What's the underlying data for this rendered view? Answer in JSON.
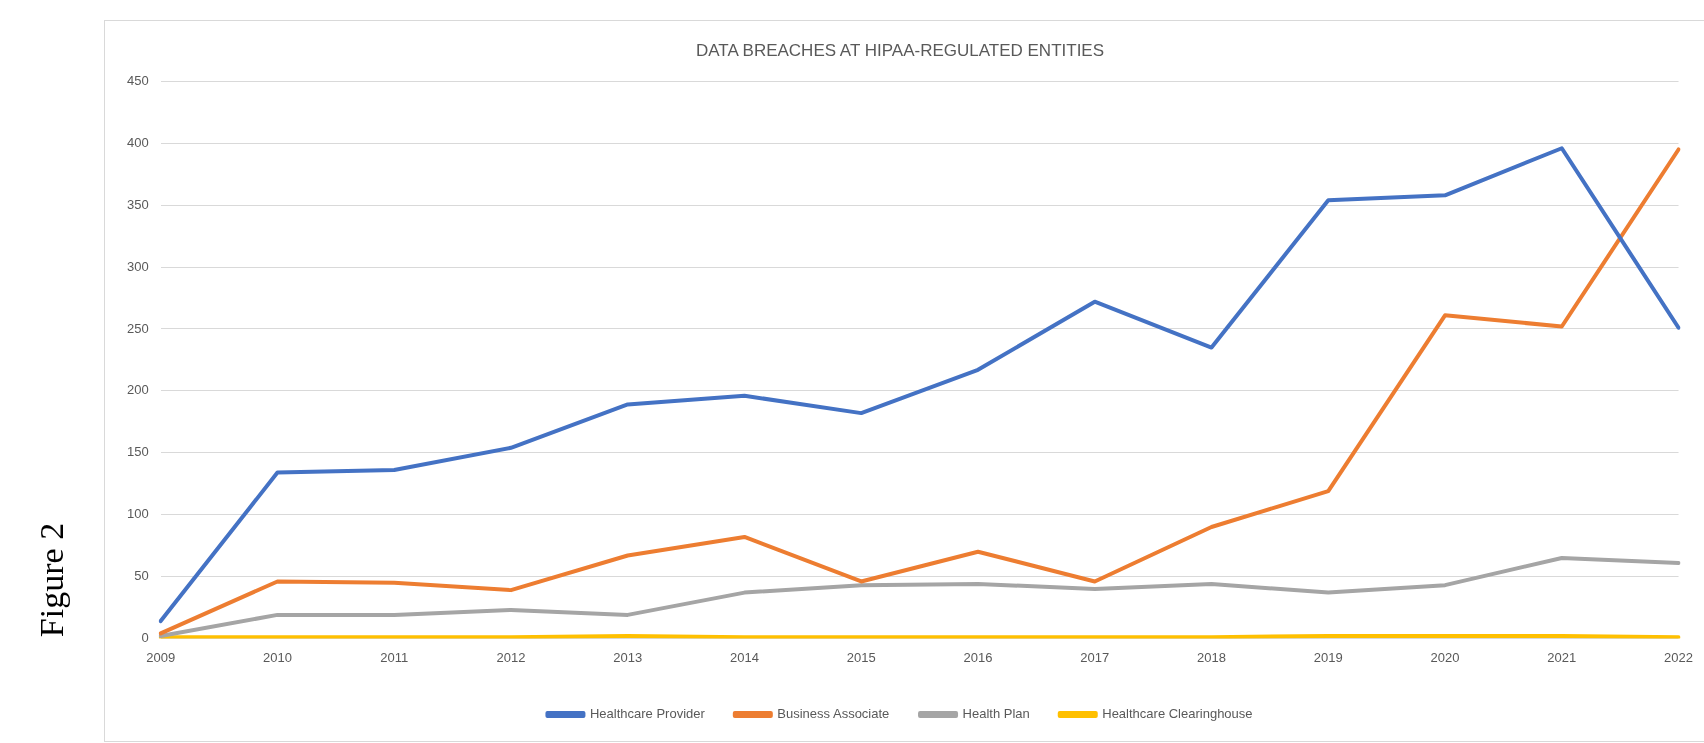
{
  "chart_data": {
    "type": "line",
    "title": "DATA BREACHES AT HIPAA-REGULATED ENTITIES",
    "categories": [
      "2009",
      "2010",
      "2011",
      "2012",
      "2013",
      "2014",
      "2015",
      "2016",
      "2017",
      "2018",
      "2019",
      "2020",
      "2021",
      "2022"
    ],
    "series": [
      {
        "name": "Healthcare Provider",
        "color": "#4472c4",
        "values": [
          14,
          134,
          136,
          154,
          189,
          196,
          182,
          217,
          272,
          235,
          354,
          358,
          396,
          251
        ]
      },
      {
        "name": "Business Associate",
        "color": "#ed7d31",
        "values": [
          4,
          46,
          45,
          39,
          67,
          82,
          46,
          70,
          46,
          90,
          119,
          261,
          252,
          395
        ]
      },
      {
        "name": "Health Plan",
        "color": "#a5a5a5",
        "values": [
          2,
          19,
          19,
          23,
          19,
          37,
          43,
          44,
          40,
          44,
          37,
          43,
          65,
          61
        ]
      },
      {
        "name": "Healthcare Clearinghouse",
        "color": "#ffc000",
        "values": [
          1,
          1,
          1,
          1,
          2,
          1,
          1,
          1,
          1,
          1,
          2,
          2,
          2,
          1
        ]
      }
    ],
    "ylim": [
      0,
      450
    ],
    "yticks": [
      0,
      50,
      100,
      150,
      200,
      250,
      300,
      350,
      400,
      450
    ],
    "grid": "y",
    "legend": "bottom",
    "marker": "none",
    "line_style": "solid",
    "annotations": [
      "Figure 2"
    ]
  }
}
